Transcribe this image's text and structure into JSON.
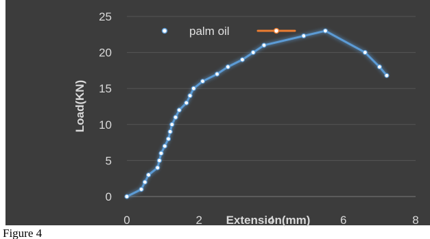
{
  "chart_data": {
    "type": "line",
    "xlabel": "Extension(mm)",
    "ylabel": "Load(KN)",
    "xlim": [
      0,
      8
    ],
    "ylim": [
      0,
      25
    ],
    "x_ticks": [
      0,
      2,
      4,
      6,
      8
    ],
    "y_ticks": [
      0,
      5,
      10,
      15,
      20,
      25
    ],
    "grid": "horizontal",
    "legend_position": "top-left",
    "series": [
      {
        "name": "palm oil",
        "color": "#5b9bd5",
        "points": [
          [
            0.0,
            0.0
          ],
          [
            0.4,
            1.0
          ],
          [
            0.5,
            2.0
          ],
          [
            0.6,
            3.0
          ],
          [
            0.85,
            4.0
          ],
          [
            0.9,
            5.0
          ],
          [
            0.95,
            6.0
          ],
          [
            1.05,
            7.0
          ],
          [
            1.15,
            8.0
          ],
          [
            1.2,
            9.0
          ],
          [
            1.25,
            10.0
          ],
          [
            1.35,
            11.0
          ],
          [
            1.45,
            12.0
          ],
          [
            1.65,
            13.0
          ],
          [
            1.75,
            14.0
          ],
          [
            1.85,
            15.0
          ],
          [
            2.1,
            16.0
          ],
          [
            2.5,
            17.0
          ],
          [
            2.8,
            18.0
          ],
          [
            3.2,
            19.0
          ],
          [
            3.5,
            20.0
          ],
          [
            3.8,
            21.0
          ],
          [
            4.9,
            22.3
          ],
          [
            5.5,
            23.0
          ],
          [
            6.6,
            20.0
          ],
          [
            7.0,
            18.0
          ],
          [
            7.2,
            16.8
          ]
        ]
      },
      {
        "name": "",
        "color": "#ed7d31",
        "points": []
      }
    ]
  },
  "caption": "Figure 4"
}
